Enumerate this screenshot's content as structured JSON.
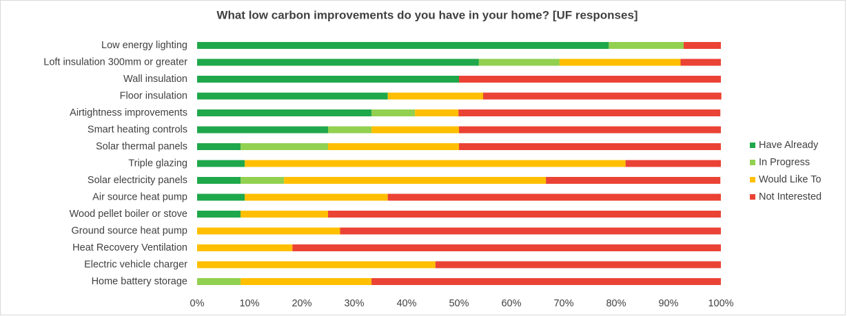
{
  "chart_data": {
    "type": "stacked_bar_horizontal",
    "title": "What low carbon improvements do you have in your home? [UF responses]",
    "categories": [
      "Low energy lighting",
      "Loft insulation 300mm or greater",
      "Wall insulation",
      "Floor insulation",
      "Airtightness improvements",
      "Smart heating controls",
      "Solar thermal panels",
      "Triple glazing",
      "Solar electricity panels",
      "Air source heat pump",
      "Wood pellet boiler or stove",
      "Ground source heat pump",
      "Heat Recovery Ventilation",
      "Electric vehicle charger",
      "Home battery storage"
    ],
    "series": [
      {
        "name": "Have Already",
        "color": "#1fa84b",
        "values": [
          78.6,
          53.8,
          50,
          36.4,
          33.3,
          25,
          8.3,
          9.1,
          8.3,
          9.1,
          8.3,
          0,
          0,
          0,
          0
        ]
      },
      {
        "name": "In Progress",
        "color": "#92d050",
        "values": [
          14.3,
          15.4,
          0,
          0,
          8.3,
          8.3,
          16.7,
          0,
          8.3,
          0,
          0,
          0,
          0,
          0,
          8.3
        ]
      },
      {
        "name": "Would Like To",
        "color": "#ffbf00",
        "values": [
          0,
          23.1,
          0,
          18.2,
          8.3,
          16.7,
          25,
          72.7,
          50,
          27.3,
          16.7,
          27.3,
          18.2,
          45.5,
          25
        ]
      },
      {
        "name": "Not Interested",
        "color": "#ea4335",
        "values": [
          7.1,
          7.7,
          50,
          45.5,
          50,
          50,
          50,
          18.2,
          33.3,
          63.6,
          75,
          72.7,
          81.8,
          54.5,
          66.7
        ]
      }
    ],
    "xlim": [
      0,
      100
    ],
    "xticks": [
      {
        "value": 0,
        "label": "0%"
      },
      {
        "value": 10,
        "label": "10%"
      },
      {
        "value": 20,
        "label": "20%"
      },
      {
        "value": 30,
        "label": "30%"
      },
      {
        "value": 40,
        "label": "40%"
      },
      {
        "value": 50,
        "label": "50%"
      },
      {
        "value": 60,
        "label": "60%"
      },
      {
        "value": 70,
        "label": "70%"
      },
      {
        "value": 80,
        "label": "80%"
      },
      {
        "value": 90,
        "label": "90%"
      },
      {
        "value": 100,
        "label": "100%"
      }
    ],
    "legend": "right"
  }
}
